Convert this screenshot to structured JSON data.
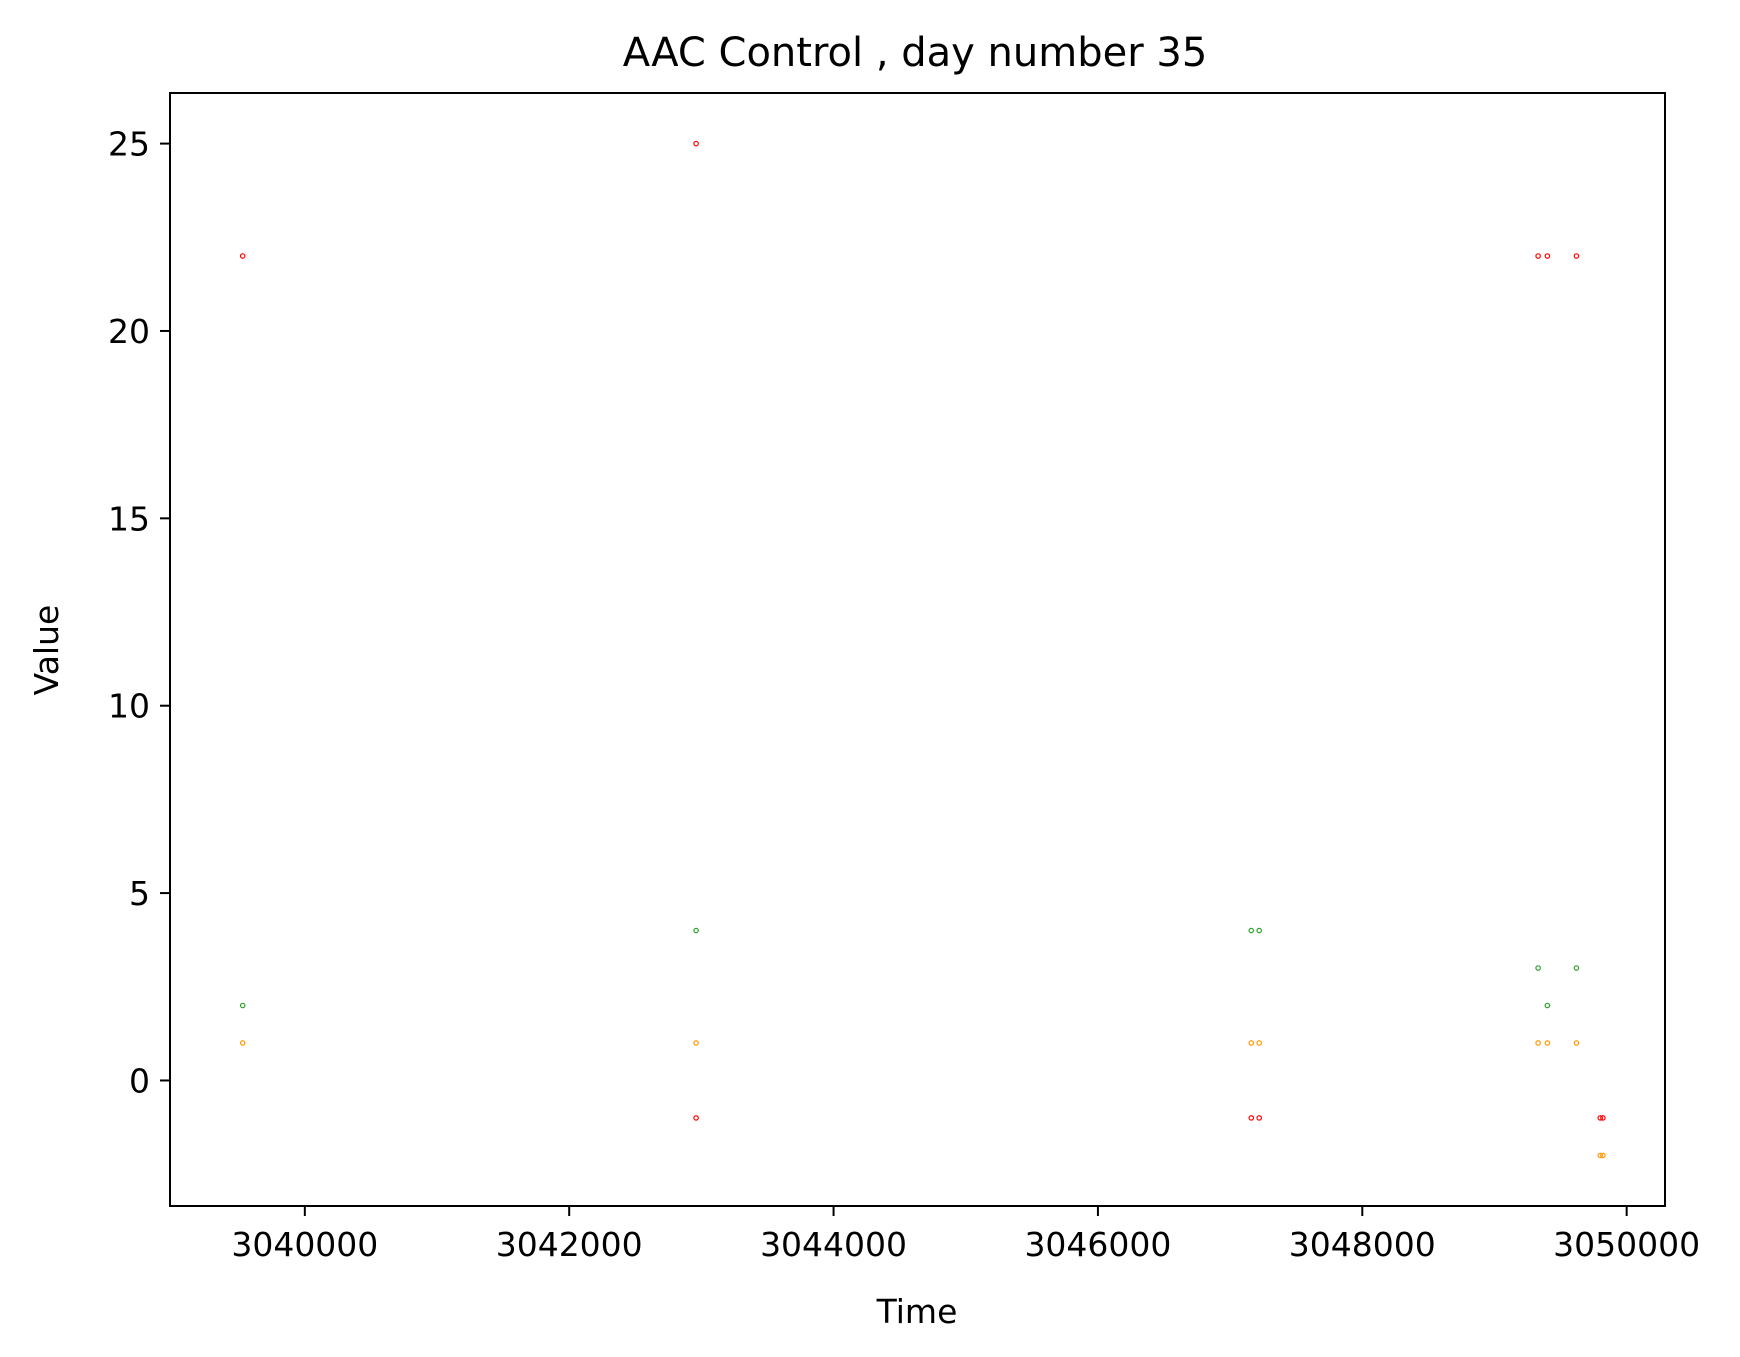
{
  "chart_data": {
    "type": "scatter",
    "title": "AAC Control , day number 35",
    "xlabel": "Time",
    "ylabel": "Value",
    "xlim": [
      3038980,
      3050290
    ],
    "ylim": [
      -3.35,
      26.35
    ],
    "xticks": [
      3040000,
      3042000,
      3044000,
      3046000,
      3048000,
      3050000
    ],
    "xtick_labels": [
      "3040000",
      "3042000",
      "3044000",
      "3046000",
      "3048000",
      "3050000"
    ],
    "yticks": [
      0,
      5,
      10,
      15,
      20,
      25
    ],
    "ytick_labels": [
      "0",
      "5",
      "10",
      "15",
      "20",
      "25"
    ],
    "grid": false,
    "series": [
      {
        "color": "#ff0000",
        "points": [
          [
            3039530,
            22
          ],
          [
            3042960,
            25
          ],
          [
            3042960,
            -1
          ],
          [
            3047160,
            -1
          ],
          [
            3047220,
            -1
          ],
          [
            3049330,
            22
          ],
          [
            3049400,
            22
          ],
          [
            3049620,
            22
          ],
          [
            3049800,
            -1
          ],
          [
            3049820,
            -1
          ]
        ]
      },
      {
        "color": "#2ca02c",
        "points": [
          [
            3039530,
            2
          ],
          [
            3042960,
            4
          ],
          [
            3047160,
            4
          ],
          [
            3047220,
            4
          ],
          [
            3049330,
            3
          ],
          [
            3049400,
            2
          ],
          [
            3049620,
            3
          ]
        ]
      },
      {
        "color": "#ff9900",
        "points": [
          [
            3039530,
            1
          ],
          [
            3042960,
            1
          ],
          [
            3047160,
            1
          ],
          [
            3047220,
            1
          ],
          [
            3049330,
            1
          ],
          [
            3049400,
            1
          ],
          [
            3049620,
            1
          ],
          [
            3049800,
            -2
          ],
          [
            3049820,
            -2
          ]
        ]
      }
    ]
  }
}
